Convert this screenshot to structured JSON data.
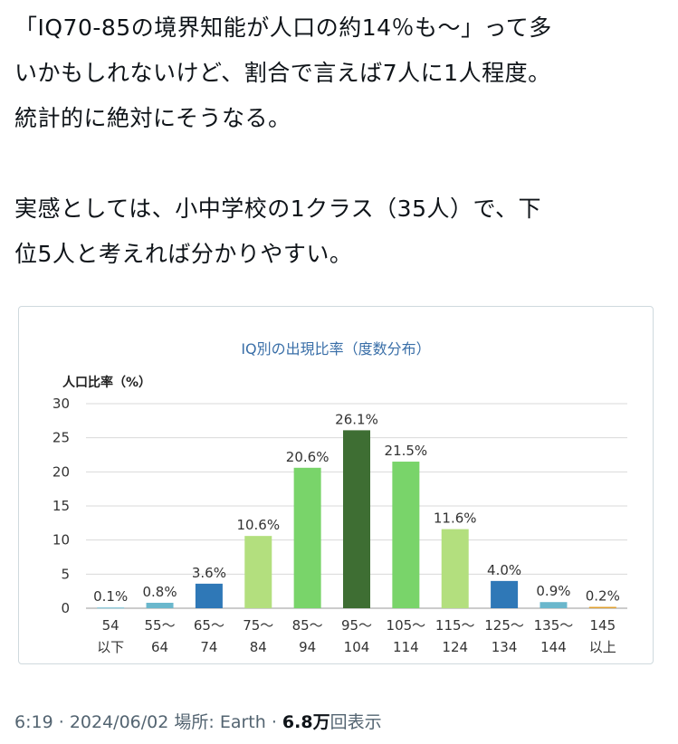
{
  "post": {
    "lines": [
      "「IQ70-85の境界知能が人口の約14％も〜」って多",
      "いかもしれないけど、割合で言えば7人に1人程度。",
      "統計的に絶対にそうなる。",
      "実感としては、小中学校の1クラス（35人）で、下",
      "位5人と考えれば分かりやすい。"
    ]
  },
  "meta": {
    "time": "6:19",
    "date": "2024/06/02",
    "location_label": "場所: Earth",
    "separator": "·",
    "views_count": "6.8万",
    "views_label": "回表示"
  },
  "chart_data": {
    "type": "bar",
    "title": "IQ別の出現比率（度数分布）",
    "ylabel": "人口比率（%）",
    "xlabel": "",
    "ylim": [
      0,
      30
    ],
    "yticks": [
      0,
      5,
      10,
      15,
      20,
      25,
      30
    ],
    "grid": true,
    "categories": [
      [
        "54",
        "以下"
      ],
      [
        "55〜",
        "64"
      ],
      [
        "65〜",
        "74"
      ],
      [
        "75〜",
        "84"
      ],
      [
        "85〜",
        "94"
      ],
      [
        "95〜",
        "104"
      ],
      [
        "105〜",
        "114"
      ],
      [
        "115〜",
        "124"
      ],
      [
        "125〜",
        "134"
      ],
      [
        "135〜",
        "144"
      ],
      [
        "145",
        "以上"
      ]
    ],
    "values": [
      0.1,
      0.8,
      3.6,
      10.6,
      20.6,
      26.1,
      21.5,
      11.6,
      4.0,
      0.9,
      0.2
    ],
    "value_labels": [
      "0.1%",
      "0.8%",
      "3.6%",
      "10.6%",
      "20.6%",
      "26.1%",
      "21.5%",
      "11.6%",
      "4.0%",
      "0.9%",
      "0.2%"
    ],
    "colors": [
      "#6ab7cc",
      "#6ab7cc",
      "#2f78b7",
      "#b3df7e",
      "#79d46a",
      "#3e6e33",
      "#79d46a",
      "#b3df7e",
      "#2f78b7",
      "#6ab7cc",
      "#e0a030"
    ]
  }
}
